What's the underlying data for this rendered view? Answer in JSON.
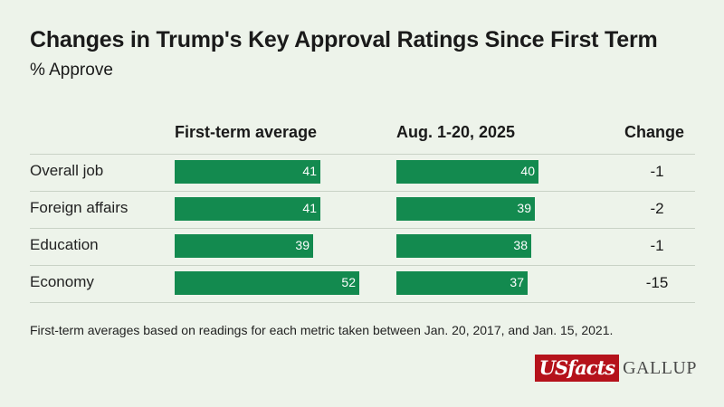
{
  "title": "Changes in Trump's Key Approval Ratings Since First Term",
  "subtitle": "% Approve",
  "columns": {
    "first_term": "First-term average",
    "recent": "Aug. 1-20, 2025",
    "change": "Change"
  },
  "footnote": "First-term averages based on readings for each metric taken between Jan. 20, 2017, and Jan. 15, 2021.",
  "logos": {
    "usfacts_us": "US",
    "usfacts_facts": "facts",
    "gallup": "GALLUP"
  },
  "colors": {
    "bar": "#138a4f",
    "background": "#edf3ea",
    "usfacts_red": "#b5121b"
  },
  "chart_data": {
    "type": "bar",
    "title": "Changes in Trump's Key Approval Ratings Since First Term",
    "ylabel": "% Approve",
    "categories": [
      "Overall job",
      "Foreign affairs",
      "Education",
      "Economy"
    ],
    "series": [
      {
        "name": "First-term average",
        "values": [
          41,
          41,
          39,
          52
        ]
      },
      {
        "name": "Aug. 1-20, 2025",
        "values": [
          40,
          39,
          38,
          37
        ]
      }
    ],
    "change": [
      "-1",
      "-2",
      "-1",
      "-15"
    ],
    "xlim": [
      0,
      52
    ]
  }
}
